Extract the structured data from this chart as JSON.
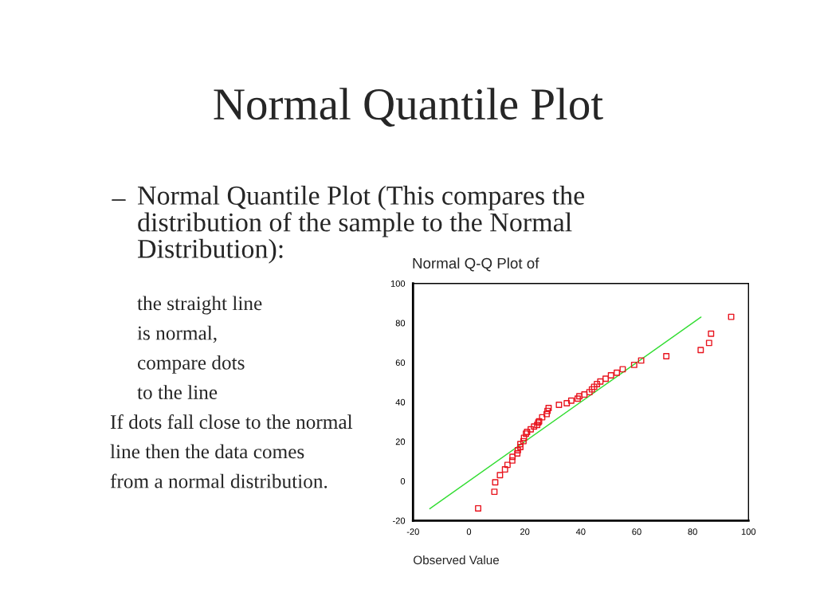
{
  "chart_data": {
    "type": "scatter",
    "title": "Normal Quantile Plot",
    "subtitle": "Normal Q-Q Plot of",
    "xlabel": "Observed Value",
    "annotations": [
      "Normal Quantile Plot (This compares the\ndistribution of the sample to the Normal\nDistribution):",
      "the straight line",
      "is normal,",
      "compare dots",
      "to the line",
      "If dots fall close to the normal",
      "line then the data comes",
      "from a normal distribution."
    ],
    "series": [
      {
        "type": "scatter",
        "color": "#e8141e",
        "marker": "square",
        "x": [
          3.3,
          9.1,
          9.4,
          11.1,
          12.9,
          13.8,
          15.5,
          15.6,
          17.3,
          17.5,
          18.4,
          18.4,
          19.5,
          19.7,
          20.4,
          20.8,
          22.1,
          23.3,
          24.4,
          24.8,
          25.1,
          26.2,
          27.8,
          28.1,
          28.5,
          32.2,
          35.0,
          36.6,
          38.9,
          39.5,
          41.3,
          43.1,
          44.0,
          44.8,
          45.8,
          47.0,
          48.9,
          50.8,
          52.9,
          55.0,
          59.1,
          61.6,
          70.6,
          82.9,
          85.9,
          86.6,
          93.8
        ],
        "values": [
          -13.8,
          -5.4,
          -0.6,
          3.0,
          5.9,
          8.2,
          10.4,
          12.3,
          14.0,
          15.6,
          17.2,
          18.7,
          20.2,
          21.9,
          24.0,
          24.9,
          26.2,
          27.6,
          28.4,
          29.6,
          30.2,
          32.3,
          33.9,
          35.5,
          37.0,
          38.6,
          39.4,
          40.7,
          41.7,
          42.9,
          43.8,
          45.0,
          46.4,
          47.7,
          49.1,
          50.4,
          51.8,
          53.5,
          54.8,
          56.6,
          58.8,
          61.0,
          63.2,
          66.3,
          69.9,
          74.6,
          83.1
        ]
      },
      {
        "type": "line",
        "color": "#33dd33",
        "marker": "none",
        "x": [
          -14,
          83
        ],
        "values": [
          -14,
          83
        ]
      }
    ],
    "xlim": [
      -20,
      100
    ],
    "xticks": [
      -20,
      0,
      20,
      40,
      60,
      80,
      100
    ],
    "ylim": [
      -20,
      100
    ],
    "yticks": [
      -20,
      0,
      20,
      40,
      60,
      80,
      100
    ],
    "grid": false
  }
}
